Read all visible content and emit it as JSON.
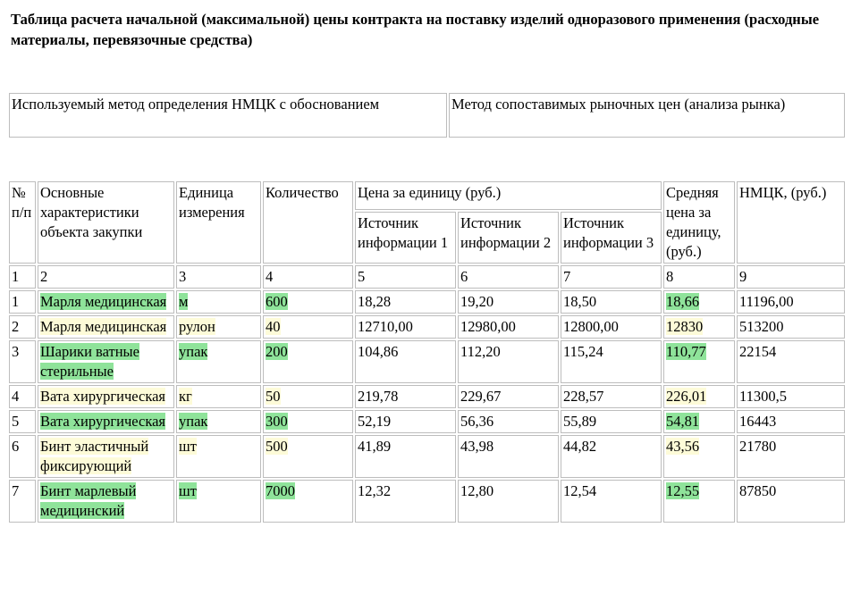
{
  "title": "Таблица расчета начальной (максимальной) цены контракта на поставку изделий одноразового применения (расходные материалы, перевязочные средства)",
  "method": {
    "label": "Используемый метод определения НМЦК с обоснованием",
    "value": "Метод сопоставимых рыночных цен (анализа рынка)"
  },
  "table": {
    "headers": {
      "num": "№ п/п",
      "characteristics": "Основные характеристики объекта закупки",
      "unit": "Единица измерения",
      "quantity": "Количество",
      "price_group": "Цена за единицу (руб.)",
      "source1": "Источник информации 1",
      "source2": "Источник информации 2",
      "source3": "Источник информации 3",
      "avg_price": "Средняя цена за единицу, (руб.)",
      "nmck": "НМЦК, (руб.)"
    },
    "col_numbers": [
      "1",
      "2",
      "3",
      "4",
      "5",
      "6",
      "7",
      "8",
      "9"
    ],
    "rows": [
      {
        "num": "1",
        "name": "Марля медицинская",
        "unit": "м",
        "qty": "600",
        "p1": "18,28",
        "p2": "19,20",
        "p3": "18,50",
        "avg": "18,66",
        "nmck": "11196,00"
      },
      {
        "num": "2",
        "name": "Марля медицинская",
        "unit": "рулон",
        "qty": "40",
        "p1": "12710,00",
        "p2": "12980,00",
        "p3": "12800,00",
        "avg": "12830",
        "nmck": "513200"
      },
      {
        "num": "3",
        "name": "Шарики ватные стерильные",
        "unit": "упак",
        "qty": "200",
        "p1": "104,86",
        "p2": "112,20",
        "p3": "115,24",
        "avg": "110,77",
        "nmck": "22154"
      },
      {
        "num": "4",
        "name": "Вата хирургическая",
        "unit": "кг",
        "qty": "50",
        "p1": "219,78",
        "p2": "229,67",
        "p3": "228,57",
        "avg": "226,01",
        "nmck": "11300,5"
      },
      {
        "num": "5",
        "name": "Вата хирургическая",
        "unit": "упак",
        "qty": "300",
        "p1": "52,19",
        "p2": "56,36",
        "p3": "55,89",
        "avg": "54,81",
        "nmck": "16443"
      },
      {
        "num": "6",
        "name": "Бинт эластичный фиксирующий",
        "unit": "шт",
        "qty": "500",
        "p1": "41,89",
        "p2": "43,98",
        "p3": "44,82",
        "avg": "43,56",
        "nmck": "21780"
      },
      {
        "num": "7",
        "name": "Бинт марлевый медицинский",
        "unit": "шт",
        "qty": "7000",
        "p1": "12,32",
        "p2": "12,80",
        "p3": "12,54",
        "avg": "12,55",
        "nmck": "87850"
      }
    ],
    "highlight_colors": {
      "green": "#8fe39a",
      "yellow": "#fdfbd8"
    }
  }
}
